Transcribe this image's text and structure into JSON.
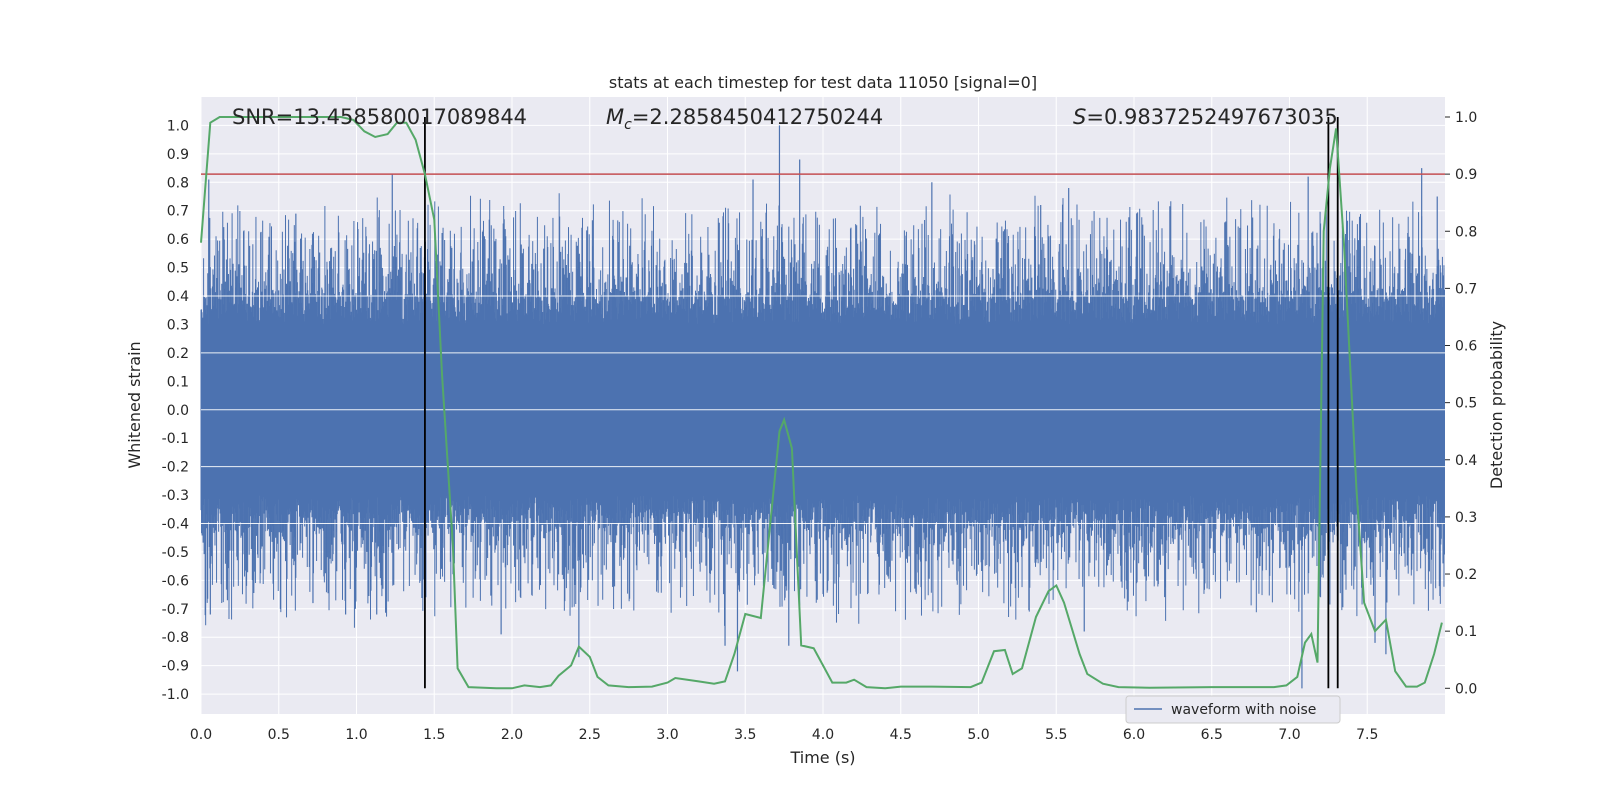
{
  "chart_data": {
    "type": "line",
    "title": "stats at each timestep for test data 11050 [signal=0]",
    "xlabel": "Time (s)",
    "ylabel": "Whitened strain",
    "ylabel_right": "Detection probability",
    "xlim": [
      0.0,
      8.0
    ],
    "ylim": [
      -1.07,
      1.1
    ],
    "ylim_right": [
      -0.045,
      1.035
    ],
    "x_ticks": [
      "0.0",
      "0.5",
      "1.0",
      "1.5",
      "2.0",
      "2.5",
      "3.0",
      "3.5",
      "4.0",
      "4.5",
      "5.0",
      "5.5",
      "6.0",
      "6.5",
      "7.0",
      "7.5"
    ],
    "y_ticks": [
      "1.0",
      "0.9",
      "0.8",
      "0.7",
      "0.6",
      "0.5",
      "0.4",
      "0.3",
      "0.2",
      "0.1",
      "0.0",
      "-0.1",
      "-0.2",
      "-0.3",
      "-0.4",
      "-0.5",
      "-0.6",
      "-0.7",
      "-0.8",
      "-0.9",
      "-1.0"
    ],
    "y_ticks_right": [
      "1.0",
      "0.9",
      "0.8",
      "0.7",
      "0.6",
      "0.5",
      "0.4",
      "0.3",
      "0.2",
      "0.1",
      "0.0"
    ],
    "annotations": {
      "snr": "SNR=13.458580017089844",
      "mc": "=2.2858450412750244",
      "s": "=0.9837252497673035"
    },
    "threshold": {
      "value": 0.9,
      "axis": "right",
      "color": "#c44e52"
    },
    "vlines": [
      1.44,
      7.25,
      7.31
    ],
    "legend": {
      "label": "waveform with noise",
      "placement": "lower right"
    },
    "colors": {
      "waveform": "#4c72b0",
      "probability": "#55a868",
      "threshold": "#c44e52",
      "vline": "#000000",
      "background": "#eaeaf2",
      "grid": "#ffffff"
    },
    "waveform_peaks": [
      {
        "x": 0.05,
        "y": 0.81
      },
      {
        "x": 0.06,
        "y": -0.72
      },
      {
        "x": 0.17,
        "y": -0.67
      },
      {
        "x": 0.61,
        "y": 0.69
      },
      {
        "x": 0.72,
        "y": -0.68
      },
      {
        "x": 0.93,
        "y": -0.72
      },
      {
        "x": 1.13,
        "y": -0.72
      },
      {
        "x": 1.23,
        "y": 0.83
      },
      {
        "x": 1.43,
        "y": 0.48
      },
      {
        "x": 1.93,
        "y": -0.79
      },
      {
        "x": 2.43,
        "y": -0.87
      },
      {
        "x": 2.45,
        "y": 0.64
      },
      {
        "x": 3.37,
        "y": -0.83
      },
      {
        "x": 3.45,
        "y": -0.92
      },
      {
        "x": 3.55,
        "y": 0.81
      },
      {
        "x": 3.72,
        "y": 1.0
      },
      {
        "x": 3.78,
        "y": -0.83
      },
      {
        "x": 3.85,
        "y": 0.88
      },
      {
        "x": 4.7,
        "y": 0.8
      },
      {
        "x": 5.4,
        "y": 0.72
      },
      {
        "x": 5.58,
        "y": 0.78
      },
      {
        "x": 5.68,
        "y": -0.78
      },
      {
        "x": 7.08,
        "y": -0.98
      },
      {
        "x": 7.12,
        "y": 0.82
      },
      {
        "x": 7.55,
        "y": -0.82
      },
      {
        "x": 7.62,
        "y": -0.86
      },
      {
        "x": 7.85,
        "y": 0.85
      },
      {
        "x": 7.95,
        "y": 0.75
      }
    ],
    "probability_points": [
      {
        "x": 0.0,
        "y": 0.78
      },
      {
        "x": 0.06,
        "y": 0.99
      },
      {
        "x": 0.12,
        "y": 1.0
      },
      {
        "x": 0.5,
        "y": 1.0
      },
      {
        "x": 0.9,
        "y": 1.0
      },
      {
        "x": 0.98,
        "y": 0.995
      },
      {
        "x": 1.05,
        "y": 0.975
      },
      {
        "x": 1.12,
        "y": 0.965
      },
      {
        "x": 1.2,
        "y": 0.97
      },
      {
        "x": 1.26,
        "y": 0.99
      },
      {
        "x": 1.32,
        "y": 0.99
      },
      {
        "x": 1.38,
        "y": 0.96
      },
      {
        "x": 1.44,
        "y": 0.9
      },
      {
        "x": 1.5,
        "y": 0.82
      },
      {
        "x": 1.55,
        "y": 0.55
      },
      {
        "x": 1.62,
        "y": 0.25
      },
      {
        "x": 1.65,
        "y": 0.035
      },
      {
        "x": 1.72,
        "y": 0.002
      },
      {
        "x": 1.9,
        "y": 0.0
      },
      {
        "x": 2.0,
        "y": 0.0
      },
      {
        "x": 2.08,
        "y": 0.005
      },
      {
        "x": 2.18,
        "y": 0.002
      },
      {
        "x": 2.25,
        "y": 0.005
      },
      {
        "x": 2.3,
        "y": 0.022
      },
      {
        "x": 2.38,
        "y": 0.04
      },
      {
        "x": 2.43,
        "y": 0.073
      },
      {
        "x": 2.5,
        "y": 0.055
      },
      {
        "x": 2.55,
        "y": 0.02
      },
      {
        "x": 2.62,
        "y": 0.005
      },
      {
        "x": 2.75,
        "y": 0.002
      },
      {
        "x": 2.9,
        "y": 0.003
      },
      {
        "x": 3.0,
        "y": 0.01
      },
      {
        "x": 3.05,
        "y": 0.018
      },
      {
        "x": 3.2,
        "y": 0.012
      },
      {
        "x": 3.3,
        "y": 0.008
      },
      {
        "x": 3.37,
        "y": 0.012
      },
      {
        "x": 3.43,
        "y": 0.06
      },
      {
        "x": 3.5,
        "y": 0.13
      },
      {
        "x": 3.6,
        "y": 0.123
      },
      {
        "x": 3.72,
        "y": 0.45
      },
      {
        "x": 3.75,
        "y": 0.47
      },
      {
        "x": 3.8,
        "y": 0.42
      },
      {
        "x": 3.86,
        "y": 0.075
      },
      {
        "x": 3.94,
        "y": 0.07
      },
      {
        "x": 4.0,
        "y": 0.04
      },
      {
        "x": 4.06,
        "y": 0.01
      },
      {
        "x": 4.15,
        "y": 0.01
      },
      {
        "x": 4.2,
        "y": 0.015
      },
      {
        "x": 4.28,
        "y": 0.002
      },
      {
        "x": 4.4,
        "y": 0.0
      },
      {
        "x": 4.5,
        "y": 0.003
      },
      {
        "x": 4.7,
        "y": 0.003
      },
      {
        "x": 4.95,
        "y": 0.002
      },
      {
        "x": 5.02,
        "y": 0.01
      },
      {
        "x": 5.1,
        "y": 0.065
      },
      {
        "x": 5.17,
        "y": 0.067
      },
      {
        "x": 5.22,
        "y": 0.025
      },
      {
        "x": 5.28,
        "y": 0.035
      },
      {
        "x": 5.37,
        "y": 0.125
      },
      {
        "x": 5.45,
        "y": 0.17
      },
      {
        "x": 5.5,
        "y": 0.18
      },
      {
        "x": 5.55,
        "y": 0.15
      },
      {
        "x": 5.65,
        "y": 0.06
      },
      {
        "x": 5.7,
        "y": 0.025
      },
      {
        "x": 5.8,
        "y": 0.008
      },
      {
        "x": 5.9,
        "y": 0.002
      },
      {
        "x": 6.1,
        "y": 0.001
      },
      {
        "x": 6.5,
        "y": 0.002
      },
      {
        "x": 6.9,
        "y": 0.002
      },
      {
        "x": 6.98,
        "y": 0.005
      },
      {
        "x": 7.05,
        "y": 0.02
      },
      {
        "x": 7.1,
        "y": 0.08
      },
      {
        "x": 7.14,
        "y": 0.095
      },
      {
        "x": 7.18,
        "y": 0.045
      },
      {
        "x": 7.22,
        "y": 0.8
      },
      {
        "x": 7.26,
        "y": 0.91
      },
      {
        "x": 7.3,
        "y": 0.98
      },
      {
        "x": 7.35,
        "y": 0.78
      },
      {
        "x": 7.43,
        "y": 0.35
      },
      {
        "x": 7.48,
        "y": 0.15
      },
      {
        "x": 7.55,
        "y": 0.1
      },
      {
        "x": 7.62,
        "y": 0.12
      },
      {
        "x": 7.68,
        "y": 0.03
      },
      {
        "x": 7.75,
        "y": 0.003
      },
      {
        "x": 7.82,
        "y": 0.003
      },
      {
        "x": 7.87,
        "y": 0.01
      },
      {
        "x": 7.93,
        "y": 0.06
      },
      {
        "x": 7.98,
        "y": 0.115
      }
    ]
  }
}
